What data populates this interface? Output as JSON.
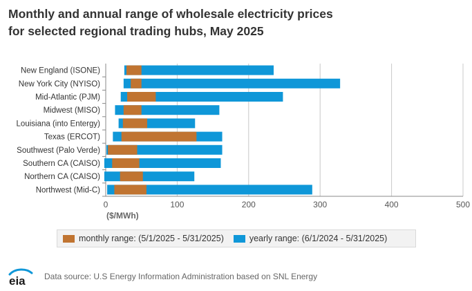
{
  "title_lines": [
    "Monthly and annual range of wholesale electricity prices",
    "for selected regional trading hubs, May 2025"
  ],
  "source": "Data source: U.S Energy Information Administration based on SNL Energy",
  "logo_text": "eia",
  "colors": {
    "monthly": "#c07431",
    "yearly": "#0f97d8",
    "grid": "#c8c8c8",
    "axis": "#888888"
  },
  "chart_data": {
    "type": "bar",
    "orientation": "horizontal-range",
    "categories": [
      "New England (ISONE)",
      "New York City (NYISO)",
      "Mid-Atlantic (PJM)",
      "Midwest (MISO)",
      "Louisiana (into Entergy)",
      "Texas (ERCOT)",
      "Southwest (Palo Verde)",
      "Southern CA (CAISO)",
      "Northern CA (CAISO)",
      "Northwest (Mid-C)"
    ],
    "series": [
      {
        "name": "yearly range: (6/1/2024 - 5/31/2025)",
        "ranges": [
          [
            26,
            235
          ],
          [
            25,
            328
          ],
          [
            21,
            248
          ],
          [
            13,
            159
          ],
          [
            18,
            125
          ],
          [
            10,
            163
          ],
          [
            1,
            163
          ],
          [
            -2,
            161
          ],
          [
            -2,
            124
          ],
          [
            2,
            289
          ]
        ]
      },
      {
        "name": "monthly range: (5/1/2025 - 5/31/2025)",
        "ranges": [
          [
            29,
            50
          ],
          [
            35,
            50
          ],
          [
            30,
            70
          ],
          [
            25,
            50
          ],
          [
            24,
            58
          ],
          [
            22,
            127
          ],
          [
            3,
            44
          ],
          [
            9,
            47
          ],
          [
            20,
            52
          ],
          [
            12,
            57
          ]
        ]
      }
    ],
    "legend": [
      "monthly range: (5/1/2025 - 5/31/2025)",
      "yearly range: (6/1/2024 - 5/31/2025)"
    ],
    "x_ticks": [
      "0",
      "100",
      "200",
      "300",
      "400",
      "500"
    ],
    "xlim": [
      0,
      500
    ],
    "xlabel": "($/MWh)",
    "grid": true,
    "legend_position": "bottom"
  }
}
